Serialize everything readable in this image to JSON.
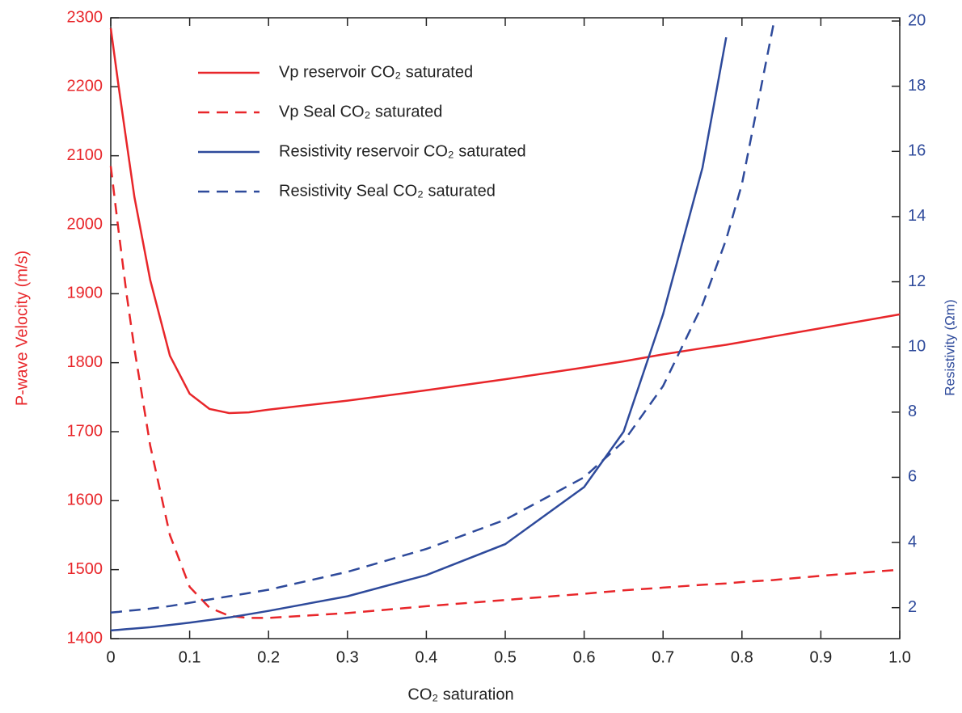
{
  "chart_data": {
    "type": "line",
    "xlabel": "CO₂  saturation",
    "ylabel": "P-wave Velocity (m/s)",
    "y2label": "Resistivity (Ωm)",
    "x": [
      0,
      0.01,
      0.02,
      0.03,
      0.05,
      0.075,
      0.1,
      0.125,
      0.15,
      0.175,
      0.2,
      0.3,
      0.4,
      0.5,
      0.6,
      0.65,
      0.7,
      0.75,
      0.78,
      0.8,
      0.84,
      0.9,
      1.0
    ],
    "series": [
      {
        "name": "Vp  reservoir  CO₂ saturated",
        "color": "#e8262a",
        "dash": false,
        "axis": "y",
        "values": [
          2285,
          2200,
          2120,
          2040,
          1920,
          1810,
          1755,
          1733,
          1727,
          1728,
          1732,
          1745,
          1760,
          1776,
          1793,
          1802,
          1812,
          1821,
          1826,
          1830,
          1838,
          1850,
          1870
        ]
      },
      {
        "name": "Vp Seal CO₂  saturated",
        "color": "#e8262a",
        "dash": true,
        "axis": "y",
        "values": [
          2085,
          1990,
          1900,
          1820,
          1680,
          1550,
          1475,
          1445,
          1433,
          1430,
          1430,
          1437,
          1447,
          1456,
          1465,
          1470,
          1474,
          1478,
          1480,
          1482,
          1485,
          1491,
          1500
        ]
      },
      {
        "name": "Resistivity reservoir CO₂  saturated",
        "color": "#2e4a9b",
        "dash": false,
        "axis": "y2",
        "values": [
          1.3,
          1.32,
          1.34,
          1.36,
          1.4,
          1.47,
          1.54,
          1.62,
          1.7,
          1.8,
          1.9,
          2.35,
          3.0,
          3.95,
          5.7,
          7.4,
          11.0,
          15.5,
          19.5,
          null,
          null,
          null,
          null
        ]
      },
      {
        "name": "Resistivity Seal  CO₂  saturated",
        "color": "#2e4a9b",
        "dash": true,
        "axis": "y2",
        "values": [
          1.85,
          1.87,
          1.9,
          1.92,
          1.97,
          2.05,
          2.15,
          2.25,
          2.35,
          2.45,
          2.55,
          3.1,
          3.8,
          4.7,
          6.0,
          7.1,
          8.8,
          11.3,
          13.3,
          15.0,
          19.9,
          null,
          null
        ]
      }
    ],
    "xlim": [
      0,
      1
    ],
    "xticks": [
      0,
      0.1,
      0.2,
      0.3,
      0.4,
      0.5,
      0.6,
      0.7,
      0.8,
      0.9,
      {
        "value": 1,
        "label": "1.0"
      }
    ],
    "ylim": [
      1400,
      2300
    ],
    "yticks": [
      1400,
      1500,
      1600,
      1700,
      1800,
      1900,
      2000,
      2100,
      2200,
      2300
    ],
    "y2lim": [
      1.05,
      20.1
    ],
    "y2ticks": [
      2,
      4,
      6,
      8,
      10,
      12,
      14,
      16,
      18,
      20
    ],
    "legend": "upper left"
  }
}
